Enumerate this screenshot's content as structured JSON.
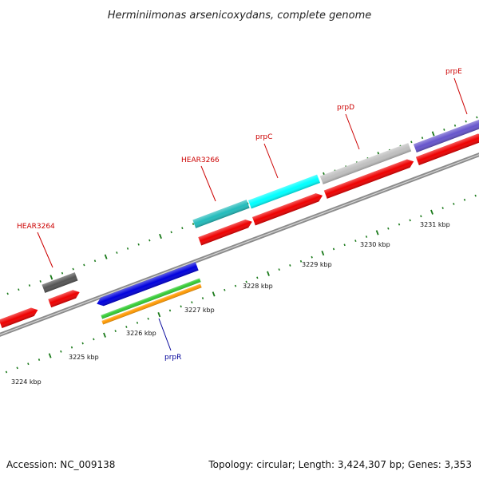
{
  "title": "Herminiimonas arsenicoxydans, complete genome",
  "footer": {
    "accession": "Accession: NC_009138",
    "summary": "Topology: circular; Length: 3,424,307 bp; Genes: 3,353"
  },
  "colors": {
    "backbone": "#8c8c8c",
    "tick": "#1a7a1a",
    "label_red": "#cc0000",
    "label_blue": "#000099",
    "red_feature": "#ee0000",
    "blue_feature": "#0000dd",
    "green_feature": "#33cc33",
    "orange_feature": "#ff9900",
    "cyan_feature": "#00ffff",
    "teal_feature": "#22bbbb",
    "gray_feature": "#bfbfbf",
    "darkgray_feature": "#555555",
    "purple_feature": "#6655cc"
  },
  "kbp_labels": [
    "3224 kbp",
    "3225 kbp",
    "3226 kbp",
    "3227 kbp",
    "3228 kbp",
    "3229 kbp",
    "3230 kbp",
    "3231 kbp"
  ],
  "gene_labels": [
    {
      "text": "HEAR3264",
      "color": "label_red"
    },
    {
      "text": "HEAR3266",
      "color": "label_red"
    },
    {
      "text": "prpC",
      "color": "label_red"
    },
    {
      "text": "prpD",
      "color": "label_red"
    },
    {
      "text": "prpE",
      "color": "label_red"
    },
    {
      "text": "prpR",
      "color": "label_blue"
    }
  ]
}
